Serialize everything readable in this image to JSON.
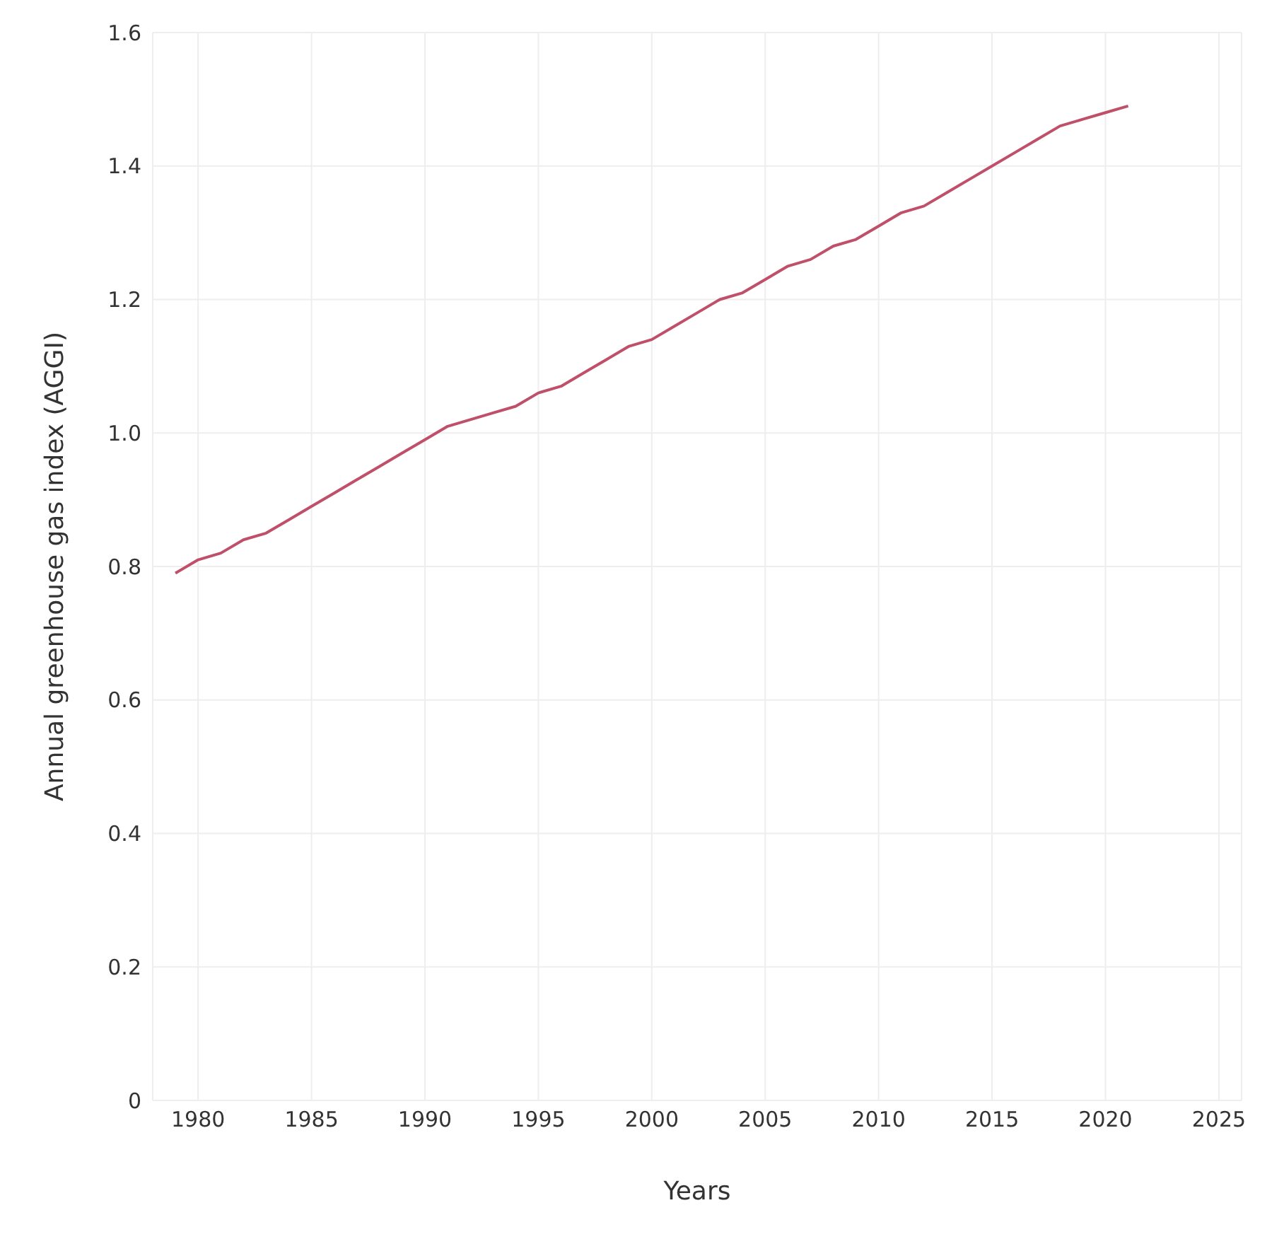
{
  "chart_data": {
    "type": "line",
    "xlabel": "Years",
    "ylabel": "Annual greenhouse gas index (AGGI)",
    "x": [
      1979,
      1980,
      1981,
      1982,
      1983,
      1984,
      1985,
      1986,
      1987,
      1988,
      1989,
      1990,
      1991,
      1992,
      1993,
      1994,
      1995,
      1996,
      1997,
      1998,
      1999,
      2000,
      2001,
      2002,
      2003,
      2004,
      2005,
      2006,
      2007,
      2008,
      2009,
      2010,
      2011,
      2012,
      2013,
      2014,
      2015,
      2016,
      2017,
      2018,
      2019,
      2020,
      2021
    ],
    "series": [
      {
        "color": "#c0506a",
        "values": [
          0.79,
          0.81,
          0.82,
          0.84,
          0.85,
          0.87,
          0.89,
          0.91,
          0.93,
          0.95,
          0.97,
          0.99,
          1.01,
          1.02,
          1.03,
          1.04,
          1.06,
          1.07,
          1.09,
          1.11,
          1.13,
          1.14,
          1.16,
          1.18,
          1.2,
          1.21,
          1.23,
          1.25,
          1.26,
          1.28,
          1.29,
          1.31,
          1.33,
          1.34,
          1.36,
          1.38,
          1.4,
          1.42,
          1.44,
          1.46,
          1.47,
          1.48,
          1.49
        ]
      }
    ],
    "xlim": [
      1978,
      2026
    ],
    "xticks": [
      1980,
      1985,
      1990,
      1995,
      2000,
      2005,
      2010,
      2015,
      2020,
      2025
    ],
    "ylim": [
      0,
      1.6
    ],
    "yticks": [
      {
        "value": 0,
        "label": "0"
      },
      {
        "value": 0.2,
        "label": "0.2"
      },
      {
        "value": 0.4,
        "label": "0.4"
      },
      {
        "value": 0.6,
        "label": "0.6"
      },
      {
        "value": 0.8,
        "label": "0.8"
      },
      {
        "value": 1.0,
        "label": "1.0"
      },
      {
        "value": 1.2,
        "label": "1.2"
      },
      {
        "value": 1.4,
        "label": "1.4"
      },
      {
        "value": 1.6,
        "label": "1.6"
      }
    ],
    "grid": true,
    "marker": "none",
    "line_style": "solid"
  }
}
